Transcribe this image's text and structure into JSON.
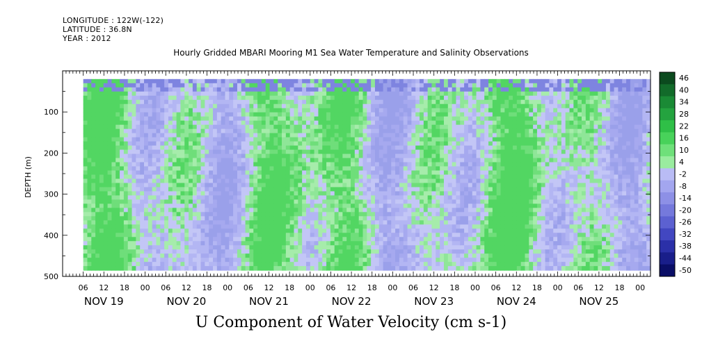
{
  "header": {
    "longitude": "LONGITUDE : 122W(-122)",
    "latitude": "LATITUDE : 36.8N",
    "year": "YEAR : 2012"
  },
  "chart_data": {
    "type": "heatmap",
    "title": "Hourly Gridded MBARI Mooring M1 Sea Water Temperature and Salinity Observations",
    "bottom_title": "U Component of Water Velocity (cm s-1)",
    "ylabel": "DEPTH (m)",
    "ylim": [
      500,
      0
    ],
    "y_ticks": [
      100,
      200,
      300,
      400,
      500
    ],
    "hour_labels": [
      "06",
      "12",
      "18",
      "00",
      "06",
      "12",
      "18",
      "00",
      "06",
      "12",
      "18",
      "00",
      "06",
      "12",
      "18",
      "00",
      "06",
      "12",
      "18",
      "00",
      "06",
      "12",
      "18",
      "00",
      "06",
      "12",
      "18",
      "00"
    ],
    "day_labels": [
      "NOV 19",
      "NOV 20",
      "NOV 21",
      "NOV 22",
      "NOV 23",
      "NOV 24",
      "NOV 25"
    ],
    "colorbar": {
      "labels": [
        "46",
        "40",
        "34",
        "28",
        "22",
        "16",
        "10",
        "4",
        "-2",
        "-8",
        "-14",
        "-20",
        "-26",
        "-32",
        "-38",
        "-44",
        "-50"
      ],
      "colors": [
        "#0b4a1e",
        "#126b2a",
        "#1a8a35",
        "#24a33f",
        "#2fbf47",
        "#48d25a",
        "#6fe07a",
        "#9aec9f",
        "#b9bcf5",
        "#a3a6ef",
        "#8d90e6",
        "#7579dc",
        "#5c61d1",
        "#4247c1",
        "#2b30a8",
        "#191e8a",
        "#0a0e66"
      ]
    },
    "data_range": {
      "depth_top": 20,
      "depth_bottom": 485,
      "time_start_hour": 6,
      "time_end_hour": 171
    },
    "value_palette": [
      "#b3b6f3",
      "#a6a9ef",
      "#9ea1ec",
      "#c3c6f6",
      "#a6ecab",
      "#8fe698",
      "#6fde7a",
      "#52d662",
      "#9aa0ea",
      "#7e84e0"
    ]
  }
}
